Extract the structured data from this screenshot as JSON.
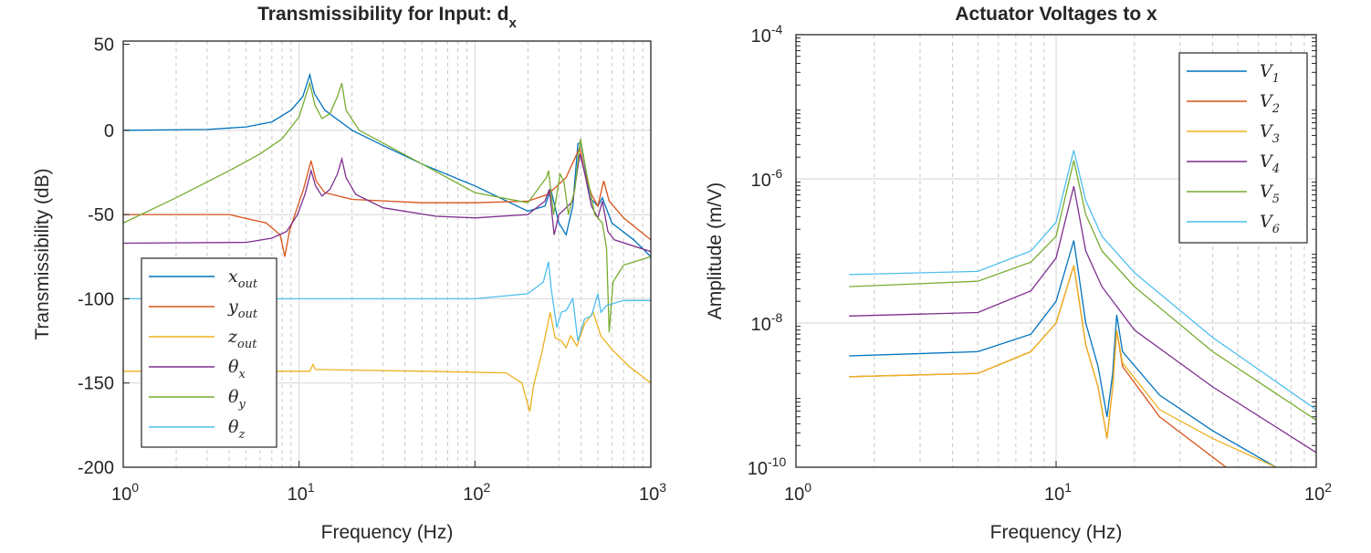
{
  "chart_data": [
    {
      "type": "line",
      "title": "Transmissibility for Input: d",
      "title_subscript": "x",
      "xlabel": "Frequency (Hz)",
      "ylabel": "Transmissibility (dB)",
      "xscale": "log",
      "xlim": [
        1,
        1000
      ],
      "ylim": [
        -200,
        50
      ],
      "xticks": [
        1,
        10,
        100,
        1000
      ],
      "xtick_labels": [
        [
          "10",
          "0"
        ],
        [
          "10",
          "1"
        ],
        [
          "10",
          "2"
        ],
        [
          "10",
          "3"
        ]
      ],
      "yticks": [
        50,
        0,
        -50,
        -100,
        -150,
        -200
      ],
      "ytick_labels": [
        "50",
        "0",
        "-50",
        "-100",
        "-150",
        "-200"
      ],
      "grid": true,
      "legend_position": "bottom-left",
      "series": [
        {
          "name": "x",
          "sub": "out",
          "color": "#0072BD",
          "points": [
            [
              1,
              0
            ],
            [
              3,
              0.5
            ],
            [
              5,
              2
            ],
            [
              7,
              5
            ],
            [
              9,
              12
            ],
            [
              10.5,
              20
            ],
            [
              11.5,
              33
            ],
            [
              12.2,
              22
            ],
            [
              14,
              12
            ],
            [
              20,
              0
            ],
            [
              30,
              -9
            ],
            [
              50,
              -20
            ],
            [
              100,
              -33
            ],
            [
              200,
              -48
            ],
            [
              250,
              -45
            ],
            [
              270,
              -35
            ],
            [
              300,
              -55
            ],
            [
              330,
              -62
            ],
            [
              360,
              -45
            ],
            [
              385,
              -8
            ],
            [
              400,
              -7
            ],
            [
              420,
              -20
            ],
            [
              450,
              -40
            ],
            [
              500,
              -45
            ],
            [
              530,
              -40
            ],
            [
              600,
              -55
            ],
            [
              800,
              -65
            ],
            [
              1000,
              -75
            ]
          ]
        },
        {
          "name": "y",
          "sub": "out",
          "color": "#D95319",
          "points": [
            [
              1,
              -50
            ],
            [
              4,
              -50
            ],
            [
              6.5,
              -55
            ],
            [
              7.8,
              -62
            ],
            [
              8.3,
              -75
            ],
            [
              8.8,
              -60
            ],
            [
              9.6,
              -48
            ],
            [
              10.6,
              -35
            ],
            [
              11.7,
              -18
            ],
            [
              12.5,
              -30
            ],
            [
              14,
              -37
            ],
            [
              20,
              -41
            ],
            [
              50,
              -43
            ],
            [
              100,
              -43
            ],
            [
              200,
              -42
            ],
            [
              260,
              -38
            ],
            [
              330,
              -28
            ],
            [
              380,
              -14
            ],
            [
              395,
              -10
            ],
            [
              420,
              -25
            ],
            [
              460,
              -38
            ],
            [
              500,
              -45
            ],
            [
              540,
              -30
            ],
            [
              580,
              -42
            ],
            [
              700,
              -52
            ],
            [
              1000,
              -65
            ]
          ]
        },
        {
          "name": "z",
          "sub": "out",
          "color": "#EDB120",
          "points": [
            [
              1,
              -143
            ],
            [
              11.5,
              -143
            ],
            [
              12,
              -139
            ],
            [
              12.4,
              -142
            ],
            [
              50,
              -143
            ],
            [
              150,
              -144
            ],
            [
              185,
              -150
            ],
            [
              205,
              -167
            ],
            [
              215,
              -152
            ],
            [
              240,
              -132
            ],
            [
              268,
              -108
            ],
            [
              285,
              -123
            ],
            [
              310,
              -125
            ],
            [
              330,
              -129
            ],
            [
              350,
              -122
            ],
            [
              380,
              -128
            ],
            [
              420,
              -115
            ],
            [
              470,
              -108
            ],
            [
              520,
              -122
            ],
            [
              600,
              -130
            ],
            [
              750,
              -140
            ],
            [
              1000,
              -150
            ]
          ]
        },
        {
          "name": "θ",
          "sub": "x",
          "color": "#7E2F8E",
          "points": [
            [
              1,
              -67
            ],
            [
              5,
              -66.5
            ],
            [
              7,
              -64
            ],
            [
              8.5,
              -60
            ],
            [
              9.8,
              -50
            ],
            [
              10.8,
              -38
            ],
            [
              11.7,
              -24
            ],
            [
              12.4,
              -33
            ],
            [
              13.5,
              -39
            ],
            [
              15,
              -35
            ],
            [
              16.5,
              -26
            ],
            [
              17.5,
              -17
            ],
            [
              18.5,
              -28
            ],
            [
              21,
              -38
            ],
            [
              30,
              -46
            ],
            [
              60,
              -51
            ],
            [
              100,
              -52
            ],
            [
              200,
              -50
            ],
            [
              250,
              -42
            ],
            [
              265,
              -35
            ],
            [
              282,
              -62
            ],
            [
              300,
              -50
            ],
            [
              330,
              -46
            ],
            [
              360,
              -42
            ],
            [
              395,
              -14
            ],
            [
              420,
              -25
            ],
            [
              460,
              -45
            ],
            [
              500,
              -52
            ],
            [
              530,
              -42
            ],
            [
              570,
              -60
            ],
            [
              620,
              -65
            ],
            [
              1000,
              -72
            ]
          ]
        },
        {
          "name": "θ",
          "sub": "y",
          "color": "#77AC30",
          "points": [
            [
              1,
              -55
            ],
            [
              2,
              -40
            ],
            [
              4,
              -24
            ],
            [
              6,
              -14
            ],
            [
              8,
              -5
            ],
            [
              10,
              8
            ],
            [
              11.5,
              28
            ],
            [
              12.3,
              15
            ],
            [
              13.5,
              7
            ],
            [
              15,
              10
            ],
            [
              16.5,
              20
            ],
            [
              17.5,
              28
            ],
            [
              18.5,
              12
            ],
            [
              22,
              0
            ],
            [
              50,
              -20
            ],
            [
              100,
              -37
            ],
            [
              200,
              -43
            ],
            [
              255,
              -28
            ],
            [
              262,
              -24
            ],
            [
              280,
              -50
            ],
            [
              305,
              -26
            ],
            [
              320,
              -30
            ],
            [
              340,
              -50
            ],
            [
              370,
              -35
            ],
            [
              398,
              -5
            ],
            [
              430,
              -25
            ],
            [
              480,
              -50
            ],
            [
              530,
              -55
            ],
            [
              560,
              -70
            ],
            [
              580,
              -120
            ],
            [
              610,
              -90
            ],
            [
              700,
              -80
            ],
            [
              1000,
              -75
            ]
          ]
        },
        {
          "name": "θ",
          "sub": "z",
          "color": "#4DBEEE",
          "points": [
            [
              1,
              -100
            ],
            [
              100,
              -100
            ],
            [
              200,
              -97
            ],
            [
              245,
              -90
            ],
            [
              262,
              -78
            ],
            [
              272,
              -95
            ],
            [
              292,
              -117
            ],
            [
              310,
              -108
            ],
            [
              330,
              -107
            ],
            [
              360,
              -100
            ],
            [
              385,
              -125
            ],
            [
              420,
              -112
            ],
            [
              460,
              -110
            ],
            [
              500,
              -97
            ],
            [
              520,
              -108
            ],
            [
              560,
              -104
            ],
            [
              700,
              -101
            ],
            [
              1000,
              -101
            ]
          ]
        }
      ]
    },
    {
      "type": "line",
      "title": "Actuator Voltages to x",
      "xlabel": "Frequency (Hz)",
      "ylabel": "Amplitude (m/V)",
      "xscale": "log",
      "yscale": "log",
      "xlim": [
        1,
        100
      ],
      "ylim": [
        1e-10,
        0.0001
      ],
      "xtick_labels": [
        [
          "10",
          "0"
        ],
        [
          "10",
          "1"
        ],
        [
          "10",
          "2"
        ]
      ],
      "ytick_labels": [
        [
          "10",
          "-4"
        ],
        [
          "10",
          "-6"
        ],
        [
          "10",
          "-8"
        ],
        [
          "10",
          "-10"
        ]
      ],
      "grid": true,
      "legend_position": "top-right",
      "series": [
        {
          "name": "V",
          "sub": "1",
          "color": "#0072BD",
          "points": [
            [
              1.6,
              3.5e-09
            ],
            [
              5,
              4e-09
            ],
            [
              8,
              7e-09
            ],
            [
              10,
              2e-08
            ],
            [
              11.7,
              1.4e-07
            ],
            [
              13,
              1e-08
            ],
            [
              14.5,
              2.5e-09
            ],
            [
              15.7,
              5e-10
            ],
            [
              16.5,
              2e-09
            ],
            [
              17.1,
              1.3e-08
            ],
            [
              18,
              4e-09
            ],
            [
              25,
              1e-09
            ],
            [
              40,
              3.2e-10
            ],
            [
              70,
              1e-10
            ]
          ]
        },
        {
          "name": "V",
          "sub": "2",
          "color": "#D95319",
          "points": [
            [
              1.6,
              1.8e-09
            ],
            [
              5,
              2e-09
            ],
            [
              8,
              4e-09
            ],
            [
              10,
              1e-08
            ],
            [
              11.7,
              6.3e-08
            ],
            [
              13,
              5e-09
            ],
            [
              14.5,
              1.3e-09
            ],
            [
              15.7,
              2.5e-10
            ],
            [
              16.5,
              1.3e-09
            ],
            [
              17.1,
              8e-09
            ],
            [
              18,
              2.5e-09
            ],
            [
              25,
              5e-10
            ],
            [
              45,
              1e-10
            ]
          ]
        },
        {
          "name": "V",
          "sub": "3",
          "color": "#EDB120",
          "points": [
            [
              1.6,
              1.8e-09
            ],
            [
              5,
              2e-09
            ],
            [
              8,
              4e-09
            ],
            [
              10,
              1e-08
            ],
            [
              11.7,
              6.3e-08
            ],
            [
              13,
              5e-09
            ],
            [
              14.5,
              1.3e-09
            ],
            [
              15.7,
              2.5e-10
            ],
            [
              16.5,
              1.3e-09
            ],
            [
              17.1,
              8e-09
            ],
            [
              18,
              2.8e-09
            ],
            [
              25,
              6.3e-10
            ],
            [
              40,
              2.5e-10
            ],
            [
              70,
              1e-10
            ]
          ]
        },
        {
          "name": "V",
          "sub": "4",
          "color": "#7E2F8E",
          "points": [
            [
              1.6,
              1.25e-08
            ],
            [
              5,
              1.4e-08
            ],
            [
              8,
              2.8e-08
            ],
            [
              10,
              8e-08
            ],
            [
              11.7,
              7.9e-07
            ],
            [
              13,
              1e-07
            ],
            [
              15,
              3.2e-08
            ],
            [
              20,
              8e-09
            ],
            [
              40,
              1.3e-09
            ],
            [
              100,
              1.6e-10
            ]
          ]
        },
        {
          "name": "V",
          "sub": "5",
          "color": "#77AC30",
          "points": [
            [
              1.6,
              3.2e-08
            ],
            [
              5,
              3.8e-08
            ],
            [
              8,
              7e-08
            ],
            [
              10,
              1.6e-07
            ],
            [
              11.7,
              1.8e-06
            ],
            [
              13,
              3.2e-07
            ],
            [
              15,
              1e-07
            ],
            [
              20,
              3.2e-08
            ],
            [
              40,
              4e-09
            ],
            [
              100,
              4.5e-10
            ]
          ]
        },
        {
          "name": "V",
          "sub": "6",
          "color": "#4DBEEE",
          "points": [
            [
              1.6,
              4.7e-08
            ],
            [
              5,
              5.2e-08
            ],
            [
              8,
              1e-07
            ],
            [
              10,
              2.5e-07
            ],
            [
              11.7,
              2.5e-06
            ],
            [
              13,
              5e-07
            ],
            [
              15,
              1.6e-07
            ],
            [
              20,
              5e-08
            ],
            [
              40,
              6.3e-09
            ],
            [
              100,
              6.3e-10
            ]
          ]
        }
      ]
    }
  ]
}
